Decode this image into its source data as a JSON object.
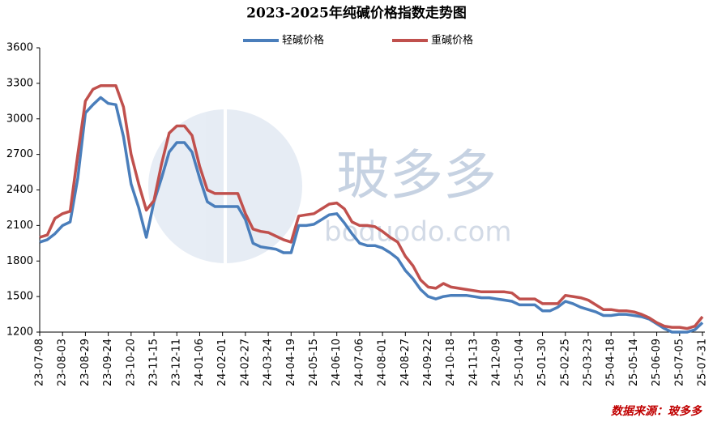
{
  "chart_data": {
    "type": "line",
    "title": "2023-2025年纯碱价格指数走势图",
    "source": "数据来源：玻多多",
    "watermark": "玻多多",
    "watermark_url": "boduodo.com",
    "ylim": [
      1200,
      3600
    ],
    "yticks": [
      1200,
      1500,
      1800,
      2100,
      2400,
      2700,
      3000,
      3300,
      3600
    ],
    "grid": false,
    "legend": "top",
    "categories": [
      "23-07-08",
      null,
      null,
      "23-08-03",
      null,
      null,
      "23-08-29",
      null,
      null,
      "23-09-24",
      null,
      null,
      "23-10-20",
      null,
      null,
      "23-11-15",
      null,
      null,
      "23-12-11",
      null,
      null,
      "24-01-06",
      null,
      null,
      "24-02-01",
      null,
      null,
      "24-02-27",
      null,
      null,
      "24-03-24",
      null,
      null,
      "24-04-19",
      null,
      null,
      "24-05-15",
      null,
      null,
      "24-06-10",
      null,
      null,
      "24-07-06",
      null,
      null,
      "24-08-01",
      null,
      null,
      "24-08-27",
      null,
      null,
      "24-09-22",
      null,
      null,
      "24-10-18",
      null,
      null,
      "24-11-13",
      null,
      null,
      "24-12-09",
      null,
      null,
      "25-01-04",
      null,
      null,
      "25-01-30",
      null,
      null,
      "25-02-25",
      null,
      null,
      "25-03-23",
      null,
      null,
      "25-04-18",
      null,
      null,
      "25-05-14",
      null,
      null,
      "25-06-09",
      null,
      null,
      "25-07-05",
      null,
      null,
      "25-07-31"
    ],
    "series": [
      {
        "name": "轻碱价格",
        "color": "#4a7ebb",
        "values": [
          1960,
          1980,
          2030,
          2100,
          2130,
          2500,
          3050,
          3120,
          3180,
          3130,
          3120,
          2850,
          2450,
          2250,
          2000,
          2300,
          2500,
          2720,
          2800,
          2800,
          2720,
          2500,
          2300,
          2260,
          2260,
          2260,
          2260,
          2150,
          1950,
          1920,
          1910,
          1900,
          1870,
          1870,
          2100,
          2100,
          2110,
          2150,
          2190,
          2200,
          2120,
          2030,
          1950,
          1930,
          1930,
          1910,
          1870,
          1820,
          1720,
          1650,
          1560,
          1500,
          1480,
          1500,
          1510,
          1510,
          1510,
          1500,
          1490,
          1490,
          1480,
          1470,
          1460,
          1430,
          1430,
          1430,
          1380,
          1380,
          1410,
          1460,
          1440,
          1410,
          1390,
          1370,
          1340,
          1340,
          1350,
          1350,
          1340,
          1330,
          1310,
          1270,
          1230,
          1200,
          1200,
          1200,
          1220,
          1280
        ]
      },
      {
        "name": "重碱价格",
        "color": "#c0504d",
        "values": [
          2000,
          2020,
          2160,
          2200,
          2220,
          2700,
          3150,
          3250,
          3280,
          3280,
          3280,
          3100,
          2700,
          2450,
          2230,
          2310,
          2620,
          2880,
          2940,
          2940,
          2860,
          2600,
          2400,
          2370,
          2370,
          2370,
          2370,
          2200,
          2070,
          2050,
          2040,
          2010,
          1980,
          1960,
          2180,
          2190,
          2200,
          2240,
          2280,
          2290,
          2240,
          2130,
          2100,
          2100,
          2090,
          2050,
          2000,
          1960,
          1840,
          1760,
          1640,
          1580,
          1570,
          1610,
          1580,
          1570,
          1560,
          1550,
          1540,
          1540,
          1540,
          1540,
          1530,
          1480,
          1480,
          1480,
          1440,
          1440,
          1440,
          1510,
          1500,
          1490,
          1470,
          1430,
          1390,
          1390,
          1380,
          1380,
          1370,
          1350,
          1320,
          1280,
          1250,
          1240,
          1240,
          1230,
          1250,
          1330
        ]
      }
    ]
  }
}
